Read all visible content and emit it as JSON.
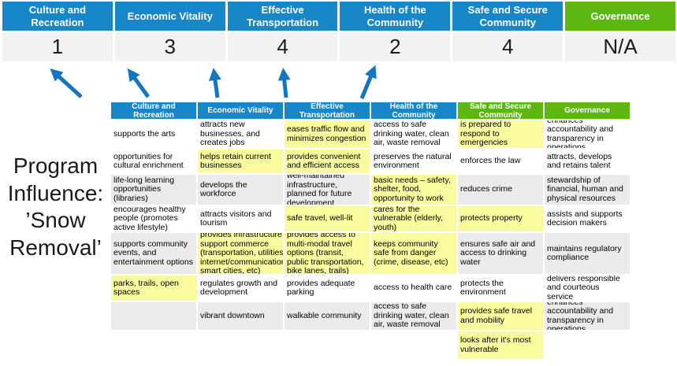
{
  "colors": {
    "blue": "#1787C8",
    "green": "#5CB711",
    "yellow": "#FAFA9E",
    "shade": "#EBEBEB",
    "scorebg": "#F2F2F2",
    "arrow": "#1476C0",
    "ink": "#1A1A1A"
  },
  "program_label": "Program\nInfluence:\n’Snow\nRemoval’",
  "summary": {
    "columns": [
      {
        "label": "Culture and Recreation",
        "score": "1",
        "accent": "blue"
      },
      {
        "label": "Economic Vitality",
        "score": "3",
        "accent": "blue"
      },
      {
        "label": "Effective Transportation",
        "score": "4",
        "accent": "blue"
      },
      {
        "label": "Health of the Community",
        "score": "2",
        "accent": "blue"
      },
      {
        "label": "Safe and Secure Community",
        "score": "4",
        "accent": "blue"
      },
      {
        "label": "Governance",
        "score": "N/A",
        "accent": "green"
      }
    ]
  },
  "matrix": {
    "headers": [
      {
        "label": "Culture and Recreation",
        "accent": "blue"
      },
      {
        "label": "Economic Vitality",
        "accent": "blue"
      },
      {
        "label": "Effective Transportation",
        "accent": "blue"
      },
      {
        "label": "Health of the Community",
        "accent": "blue"
      },
      {
        "label": "Safe and Secure Community",
        "accent": "green"
      },
      {
        "label": "Governance",
        "accent": "green"
      }
    ],
    "rows": [
      {
        "shade": false,
        "cells": [
          {
            "text": "supports the arts",
            "hl": false
          },
          {
            "text": "attracts new businesses, and creates jobs",
            "hl": false
          },
          {
            "text": "eases traffic flow and minimizes congestion",
            "hl": true
          },
          {
            "text": "access to safe drinking water, clean air, waste removal",
            "hl": false
          },
          {
            "text": "is prepared to respond to emergencies",
            "hl": true
          },
          {
            "text": "enhances accountability and transparency in operations",
            "hl": false
          }
        ]
      },
      {
        "shade": false,
        "cells": [
          {
            "text": "opportunities for cultural enrichment",
            "hl": false
          },
          {
            "text": "helps retain current businesses",
            "hl": true
          },
          {
            "text": "provides convenient and efficient access",
            "hl": true
          },
          {
            "text": "preserves the natural environment",
            "hl": false
          },
          {
            "text": "enforces the law",
            "hl": false
          },
          {
            "text": "attracts, develops and retains talent",
            "hl": false
          }
        ]
      },
      {
        "shade": true,
        "cells": [
          {
            "text": "life-long learning opportunities (libraries)",
            "hl": false
          },
          {
            "text": "develops the workforce",
            "hl": false
          },
          {
            "text": "well-maintained infrastructure, planned for future development",
            "hl": false
          },
          {
            "text": "basic needs – safety, shelter, food, opportunity to work",
            "hl": true
          },
          {
            "text": "reduces crime",
            "hl": false
          },
          {
            "text": "stewardship of financial, human and physical resources",
            "hl": false
          }
        ]
      },
      {
        "shade": false,
        "cells": [
          {
            "text": "encourages healthy people (promotes active lifestyle)",
            "hl": false
          },
          {
            "text": "attracts visitors and tourism",
            "hl": false
          },
          {
            "text": "safe travel, well-lit",
            "hl": true
          },
          {
            "text": "cares for the vulnerable (elderly, youth)",
            "hl": true
          },
          {
            "text": "protects property",
            "hl": true
          },
          {
            "text": "assists and supports decision makers",
            "hl": false
          }
        ]
      },
      {
        "shade": true,
        "cells": [
          {
            "text": "supports community events, and entertainment options",
            "hl": false
          },
          {
            "text": "provides infrastructure to support commerce (transportation, utilities, internet/communications, smart cities, etc)",
            "hl": true
          },
          {
            "text": "provides access to multi-modal travel options (transit, public transportation, bike lanes, trails)",
            "hl": true
          },
          {
            "text": "keeps community safe from danger (crime, disease, etc)",
            "hl": true
          },
          {
            "text": "ensures safe air and access to drinking water",
            "hl": false
          },
          {
            "text": "maintains regulatory compliance",
            "hl": false
          }
        ]
      },
      {
        "shade": false,
        "cells": [
          {
            "text": "parks, trails, open spaces",
            "hl": true
          },
          {
            "text": "regulates growth and development",
            "hl": false
          },
          {
            "text": "provides adequate parking",
            "hl": false
          },
          {
            "text": "access to health care",
            "hl": false
          },
          {
            "text": "protects the environment",
            "hl": false
          },
          {
            "text": "delivers responsible and courteous service",
            "hl": false
          }
        ]
      },
      {
        "shade": true,
        "cells": [
          {
            "text": "",
            "hl": false
          },
          {
            "text": "vibrant downtown",
            "hl": false
          },
          {
            "text": "walkable community",
            "hl": false
          },
          {
            "text": "access to safe drinking water, clean air, waste removal",
            "hl": false
          },
          {
            "text": "provides safe travel and mobility",
            "hl": true
          },
          {
            "text": "enhances accountability and transparency in operations",
            "hl": false
          }
        ]
      },
      {
        "shade": false,
        "cells": [
          {
            "text": "",
            "hl": false
          },
          {
            "text": "",
            "hl": false
          },
          {
            "text": "",
            "hl": false
          },
          {
            "text": "",
            "hl": false
          },
          {
            "text": "looks after it's most vulnerable",
            "hl": true
          },
          {
            "text": "",
            "hl": false
          }
        ]
      }
    ]
  }
}
